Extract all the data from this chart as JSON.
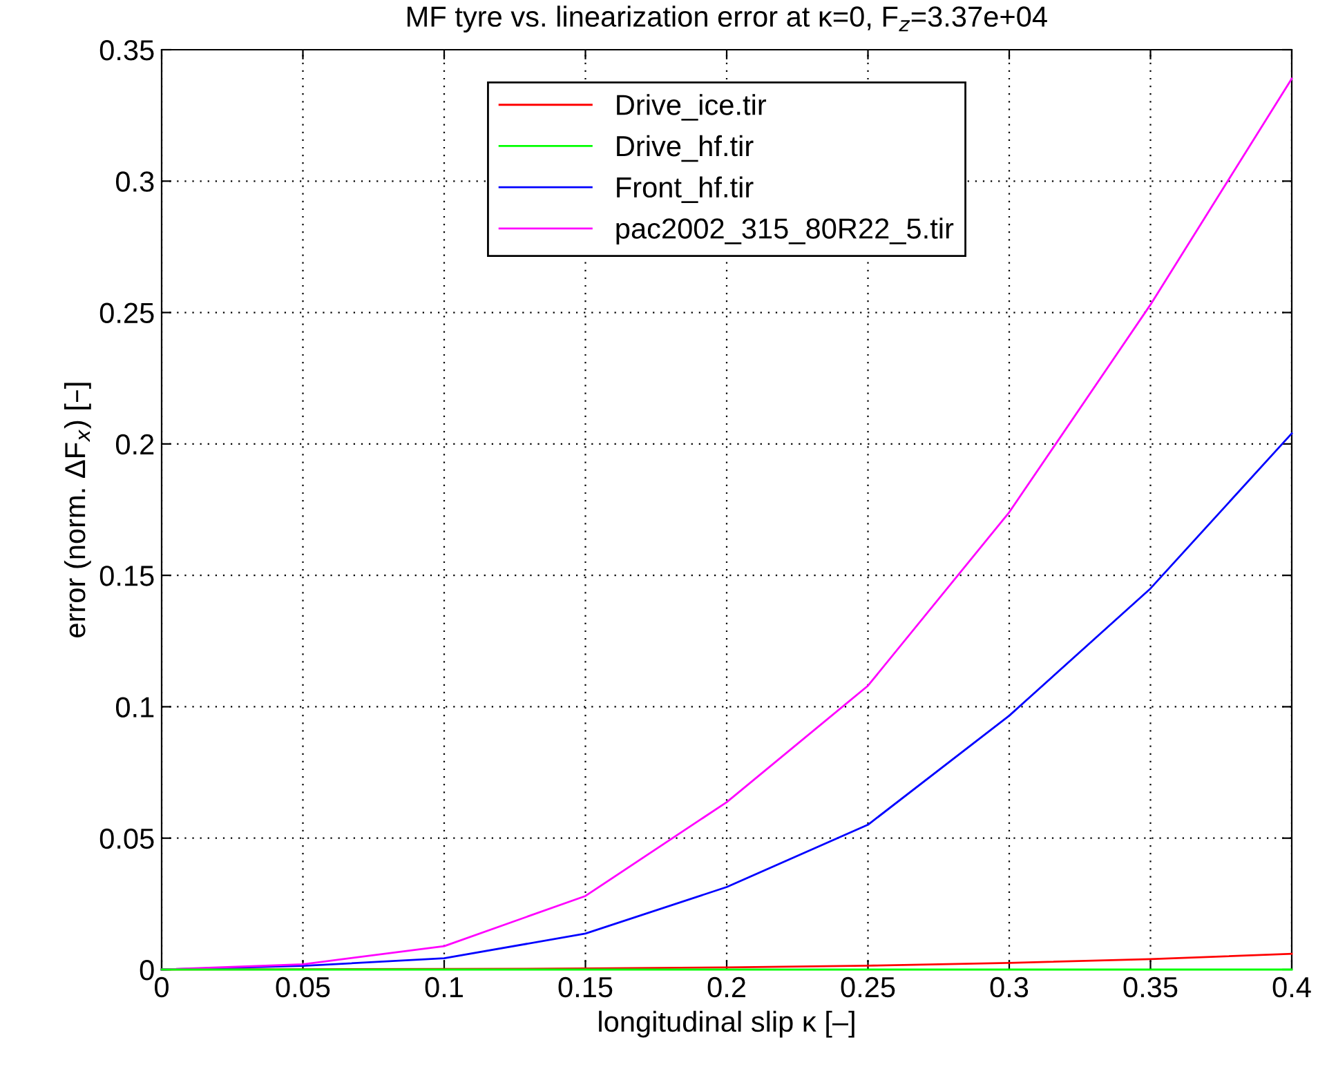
{
  "chart_data": {
    "type": "line",
    "title": "MF tyre vs. linearization error at κ=0, F$_{z}$=3.37e+04",
    "xlabel": "longitudinal slip κ [–]",
    "ylabel": "error (norm. ΔF$_{x}$) [–]",
    "x": [
      0,
      0.05,
      0.1,
      0.15,
      0.2,
      0.25,
      0.3,
      0.35,
      0.4
    ],
    "series": [
      {
        "name": "Drive_ice.tir",
        "color": "#ff0000",
        "values": [
          0,
          0.0001,
          0.0002,
          0.0004,
          0.0008,
          0.0015,
          0.0025,
          0.004,
          0.006
        ]
      },
      {
        "name": "Drive_hf.tir",
        "color": "#00ff00",
        "values": [
          0,
          0,
          0,
          0,
          0,
          0,
          0,
          0,
          0
        ]
      },
      {
        "name": "Front_hf.tir",
        "color": "#0000ff",
        "values": [
          0,
          0.0014,
          0.0043,
          0.0137,
          0.0314,
          0.0551,
          0.0966,
          0.145,
          0.204
        ]
      },
      {
        "name": "pac2002_315_80R22_5.tir",
        "color": "#ff00ff",
        "values": [
          0,
          0.002,
          0.0089,
          0.028,
          0.0637,
          0.108,
          0.174,
          0.253,
          0.339
        ]
      }
    ],
    "xlim": [
      0,
      0.4
    ],
    "ylim": [
      0,
      0.35
    ],
    "xticks": [
      0,
      0.05,
      0.1,
      0.15,
      0.2,
      0.25,
      0.3,
      0.35,
      0.4
    ],
    "yticks": [
      0,
      0.05,
      0.1,
      0.15,
      0.2,
      0.25,
      0.3,
      0.35
    ],
    "grid": true,
    "legend": "top",
    "line_style": "solid"
  }
}
